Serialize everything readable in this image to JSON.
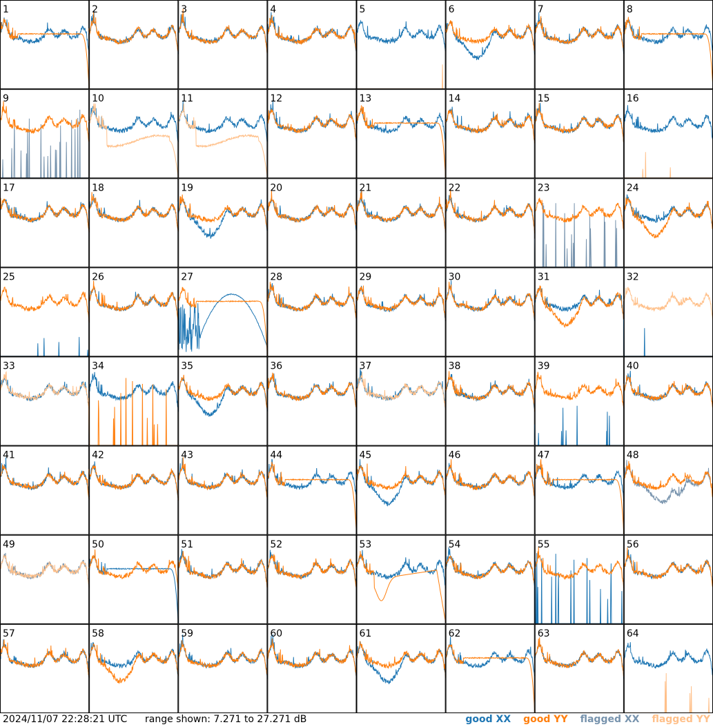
{
  "chart_data": {
    "type": "line",
    "description_units": "dB",
    "panel_labels": [
      "1",
      "2",
      "3",
      "4",
      "5",
      "6",
      "7",
      "8",
      "9",
      "10",
      "11",
      "12",
      "13",
      "14",
      "15",
      "16",
      "17",
      "18",
      "19",
      "20",
      "21",
      "22",
      "23",
      "24",
      "25",
      "26",
      "27",
      "28",
      "29",
      "30",
      "31",
      "32",
      "33",
      "34",
      "35",
      "36",
      "37",
      "38",
      "39",
      "40",
      "41",
      "42",
      "43",
      "44",
      "45",
      "46",
      "47",
      "48",
      "49",
      "50",
      "51",
      "52",
      "53",
      "54",
      "55",
      "56",
      "57",
      "58",
      "59",
      "60",
      "61",
      "62",
      "63",
      "64"
    ],
    "ylim": [
      7.271,
      27.271
    ],
    "series_styles": {
      "good_xx": "#1f77b4",
      "good_yy": "#ff7f0e",
      "flagged_xx": "#7793ad",
      "flagged_yy": "#ffc08a"
    },
    "panel_behaviour": {
      "1": {
        "xx": "good",
        "yy": "drop"
      },
      "5": {
        "xx": "good",
        "yy": "low_spikes"
      },
      "6": {
        "xx": "dip",
        "yy": "good"
      },
      "8": {
        "xx": "good",
        "yy": "drop"
      },
      "9": {
        "xx": "flagged_spikes",
        "yy": "good"
      },
      "10": {
        "xx": "good",
        "yy": "flagged_drop"
      },
      "11": {
        "xx": "good",
        "yy": "flagged_drop"
      },
      "13": {
        "xx": "good",
        "yy": "drop"
      },
      "16": {
        "xx": "good",
        "yy": "low_spikes"
      },
      "19": {
        "xx": "dip",
        "yy": "good"
      },
      "23": {
        "xx": "flagged_spikes",
        "yy": "good"
      },
      "24": {
        "xx": "good",
        "yy": "dip"
      },
      "25": {
        "xx": "low_spikes",
        "yy": "good"
      },
      "27": {
        "xx": "bad_hump",
        "yy": "drop"
      },
      "31": {
        "xx": "good",
        "yy": "dip"
      },
      "32": {
        "xx": "low_spikes",
        "yy": "flagged_good"
      },
      "33": {
        "xx": "good",
        "yy": "flagged_good"
      },
      "34": {
        "xx": "good",
        "yy": "low_spikes_big"
      },
      "35": {
        "xx": "dip",
        "yy": "good"
      },
      "37": {
        "xx": "good",
        "yy": "flagged_good"
      },
      "39": {
        "xx": "low_spikes",
        "yy": "good"
      },
      "44": {
        "xx": "good",
        "yy": "drop"
      },
      "45": {
        "xx": "dip",
        "yy": "good"
      },
      "47": {
        "xx": "good",
        "yy": "drop"
      },
      "48": {
        "xx": "flagged_dip",
        "yy": "good"
      },
      "49": {
        "xx": "flagged_good",
        "yy": "flagged_good"
      },
      "50": {
        "xx": "drop",
        "yy": "good"
      },
      "53": {
        "xx": "good",
        "yy": "deep_dip"
      },
      "55": {
        "xx": "flagged_spikes_blue",
        "yy": "good"
      },
      "58": {
        "xx": "good",
        "yy": "dip"
      },
      "61": {
        "xx": "dip",
        "yy": "good"
      },
      "62": {
        "xx": "good",
        "yy": "drop"
      },
      "64": {
        "xx": "good",
        "yy": "low_spikes"
      }
    }
  },
  "footer": {
    "timestamp": "2024/11/07 22:28:21 UTC",
    "range": "range shown: 7.271 to 27.271 dB"
  },
  "legend": [
    {
      "label": "good XX",
      "color": "#1f77b4"
    },
    {
      "label": "good YY",
      "color": "#ff7f0e"
    },
    {
      "label": "flagged XX",
      "color": "#7793ad"
    },
    {
      "label": "flagged YY",
      "color": "#ffc08a"
    }
  ]
}
